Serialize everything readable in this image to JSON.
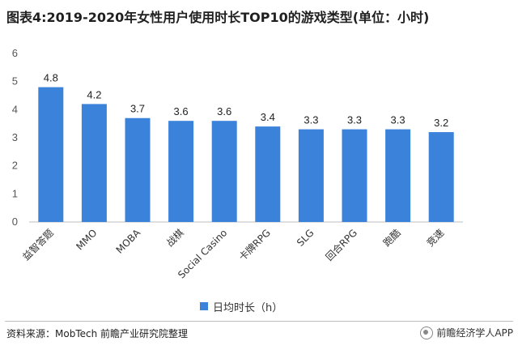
{
  "header": {
    "title": "图表4:2019-2020年女性用户使用时长TOP10的游戏类型(单位：小时)"
  },
  "chart_data": {
    "type": "bar",
    "title": "图表4:2019-2020年女性用户使用时长TOP10的游戏类型(单位：小时)",
    "categories": [
      "益智答题",
      "MMO",
      "MOBA",
      "战棋",
      "Social Casino",
      "卡牌RPG",
      "SLG",
      "回合RPG",
      "跑酷",
      "竞速"
    ],
    "series": [
      {
        "name": "日均时长（h）",
        "values": [
          4.8,
          4.2,
          3.7,
          3.6,
          3.6,
          3.4,
          3.3,
          3.3,
          3.3,
          3.2
        ]
      }
    ],
    "ylim": [
      0,
      6
    ],
    "yticks": [
      0,
      1,
      2,
      3,
      4,
      5,
      6
    ],
    "xlabel": "",
    "ylabel": "",
    "legend_position": "bottom-center",
    "grid": false,
    "bar_color": "#3b82db"
  },
  "legend": {
    "label": "日均时长（h）"
  },
  "footer": {
    "source": "资料来源：MobTech 前瞻产业研究院整理",
    "brand": "前瞻经济学人APP"
  }
}
